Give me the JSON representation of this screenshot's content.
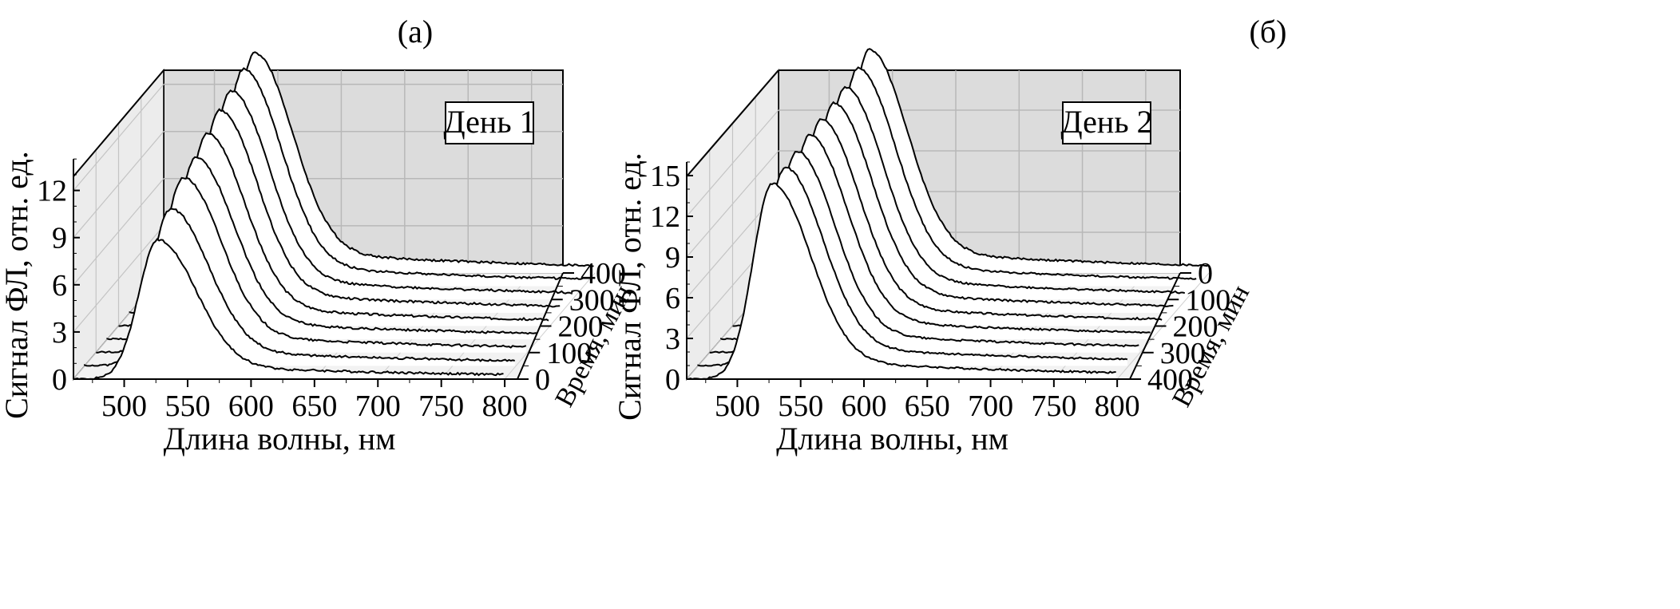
{
  "panels": [
    {
      "label": "(а)",
      "chart_data": {
        "type": "line",
        "subtype": "3d-waterfall",
        "annotation": "День 1",
        "xlabel": "Длина волны, нм",
        "ylabel": "Сигнал ФЛ, отн. ед.",
        "zlabel": "Время, мин",
        "x_ticks": [
          500,
          550,
          600,
          650,
          700,
          750,
          800
        ],
        "xlim": [
          460,
          810
        ],
        "y_ticks": [
          0,
          3,
          6,
          9,
          12
        ],
        "ylim": [
          0,
          14
        ],
        "z_ticks": [
          0,
          100,
          200,
          300,
          400
        ],
        "z_order": "ascending",
        "grid": true,
        "series": [
          {
            "time": 0,
            "peak_nm": 527,
            "peak_value": 8.6
          },
          {
            "time": 50,
            "peak_nm": 528,
            "peak_value": 9.7
          },
          {
            "time": 100,
            "peak_nm": 529,
            "peak_value": 10.8
          },
          {
            "time": 150,
            "peak_nm": 530,
            "peak_value": 11.2
          },
          {
            "time": 200,
            "peak_nm": 530,
            "peak_value": 11.9
          },
          {
            "time": 250,
            "peak_nm": 531,
            "peak_value": 12.5
          },
          {
            "time": 300,
            "peak_nm": 531,
            "peak_value": 12.9
          },
          {
            "time": 350,
            "peak_nm": 532,
            "peak_value": 13.4
          },
          {
            "time": 400,
            "peak_nm": 532,
            "peak_value": 13.6
          }
        ]
      }
    },
    {
      "label": "(б)",
      "chart_data": {
        "type": "line",
        "subtype": "3d-waterfall",
        "annotation": "День 2",
        "xlabel": "Длина волны, нм",
        "ylabel": "Сигнал ФЛ, отн. ед.",
        "zlabel": "Время, мин",
        "x_ticks": [
          500,
          550,
          600,
          650,
          700,
          750,
          800
        ],
        "xlim": [
          460,
          810
        ],
        "y_ticks": [
          0,
          3,
          6,
          9,
          12,
          15
        ],
        "ylim": [
          0,
          16
        ],
        "z_ticks": [
          0,
          100,
          200,
          300,
          400
        ],
        "z_order": "descending",
        "grid": true,
        "series": [
          {
            "time": 400,
            "peak_nm": 528,
            "peak_value": 14.0
          },
          {
            "time": 350,
            "peak_nm": 529,
            "peak_value": 14.2
          },
          {
            "time": 300,
            "peak_nm": 529,
            "peak_value": 14.4
          },
          {
            "time": 250,
            "peak_nm": 530,
            "peak_value": 14.6
          },
          {
            "time": 200,
            "peak_nm": 530,
            "peak_value": 14.8
          },
          {
            "time": 150,
            "peak_nm": 531,
            "peak_value": 15.0
          },
          {
            "time": 100,
            "peak_nm": 531,
            "peak_value": 15.2
          },
          {
            "time": 50,
            "peak_nm": 532,
            "peak_value": 15.6
          },
          {
            "time": 0,
            "peak_nm": 532,
            "peak_value": 16.0
          }
        ]
      }
    }
  ]
}
